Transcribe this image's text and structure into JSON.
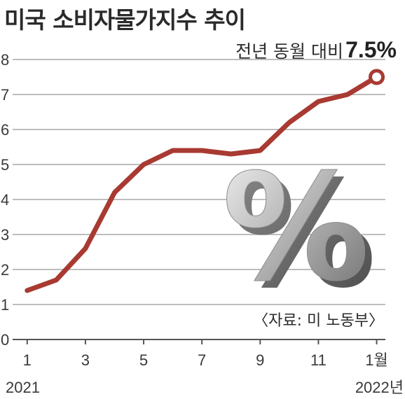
{
  "title": "미국 소비자물가지수 추이",
  "chart_data": {
    "type": "line",
    "title": "미국 소비자물가지수 추이",
    "x": [
      1,
      2,
      3,
      4,
      5,
      6,
      7,
      8,
      9,
      10,
      11,
      12,
      13
    ],
    "x_tick_labels": [
      "1",
      "3",
      "5",
      "7",
      "9",
      "11",
      "1월"
    ],
    "x_tick_positions": [
      1,
      3,
      5,
      7,
      9,
      11,
      13
    ],
    "year_labels": [
      "2021",
      "2022년"
    ],
    "series": [
      {
        "values": [
          1.4,
          1.7,
          2.6,
          4.2,
          5.0,
          5.4,
          5.4,
          5.3,
          5.4,
          6.2,
          6.8,
          7.0,
          7.5
        ]
      }
    ],
    "y_ticks": [
      0,
      1,
      2,
      3,
      4,
      5,
      6,
      7,
      8
    ],
    "ylim": [
      0,
      8
    ],
    "grid": true,
    "line_color": "#a83a32",
    "annotation": {
      "label": "전년 동월 대비",
      "value": "7.5%"
    },
    "source": "〈자료: 미 노동부〉"
  },
  "decoration": {
    "symbol": "%"
  }
}
